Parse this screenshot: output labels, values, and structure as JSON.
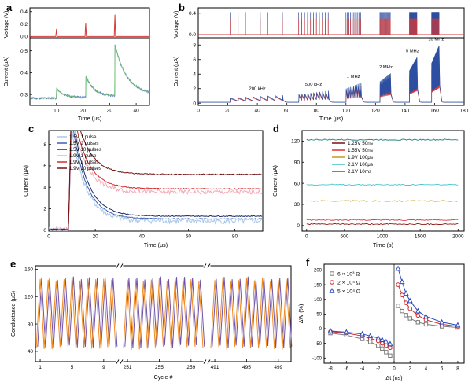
{
  "panels": {
    "a": {
      "letter": "a"
    },
    "b": {
      "letter": "b"
    },
    "c": {
      "letter": "c"
    },
    "d": {
      "letter": "d"
    },
    "e": {
      "letter": "e"
    },
    "f": {
      "letter": "f"
    }
  },
  "chart_data": [
    {
      "id": "a",
      "type": "line",
      "x": {
        "min": 0,
        "max": 45,
        "ticks": [
          10,
          20,
          30,
          40
        ],
        "tick_labels": [
          "10",
          "20",
          "30",
          "40"
        ],
        "label": "Time (μs)"
      },
      "voltage": {
        "label": "Voltage (V)",
        "min": -0.02,
        "max": 0.46,
        "ticks": [
          0,
          0.2,
          0.4
        ],
        "tick_labels": [
          "0.0",
          "0.2",
          "0.4"
        ],
        "color": "#d43c3c",
        "pulses": [
          {
            "t": 10,
            "v": 0.12
          },
          {
            "t": 21,
            "v": 0.22
          },
          {
            "t": 32,
            "v": 0.35
          }
        ]
      },
      "current": {
        "label": "Current (μA)",
        "min": 0.25,
        "max": 0.56,
        "ticks": [
          0.3,
          0.4,
          0.5
        ],
        "tick_labels": [
          "0.3",
          "0.4",
          "0.5"
        ],
        "baseline": 0.283,
        "data_color": "#5577c0",
        "fit_color": "#6fbf73",
        "responses": [
          {
            "t": 10,
            "amp": 0.04,
            "tau": 2.5,
            "offset": 0.004
          },
          {
            "t": 21,
            "amp": 0.095,
            "tau": 3,
            "offset": 0.005
          },
          {
            "t": 32,
            "amp": 0.23,
            "tau": 4.5,
            "offset": 0.006
          }
        ]
      }
    },
    {
      "id": "b",
      "type": "line",
      "x": {
        "min": 0,
        "max": 180,
        "ticks": [
          0,
          20,
          40,
          60,
          80,
          100,
          120,
          140,
          160,
          180
        ],
        "tick_labels": [
          "0",
          "20",
          "40",
          "60",
          "80",
          "100",
          "120",
          "140",
          "160",
          "180"
        ],
        "label": "Time (μs)"
      },
      "voltage": {
        "label": "Voltage (V)",
        "min": -0.06,
        "max": 0.5,
        "ticks": [
          0,
          0.4
        ],
        "tick_labels": [
          "0.0",
          "0.4"
        ],
        "blue_amp": 0.42,
        "red_amp": 0.3
      },
      "current": {
        "label": "Current (μA)",
        "min": -0.3,
        "max": 9,
        "ticks": [
          0,
          2,
          4,
          6,
          8
        ],
        "tick_labels": [
          "0",
          "2",
          "4",
          "6",
          "8"
        ],
        "baseline": 0.12
      },
      "colors": {
        "blue": "#2d4fa1",
        "red": "#d33a3a"
      },
      "groups": [
        {
          "label": "200 kHz",
          "t0": 22,
          "period": 5,
          "n": 8,
          "amp0": 0.7,
          "amp1": 1.1,
          "lx": 40,
          "ly": 1.8
        },
        {
          "label": "500 kHz",
          "t0": 68,
          "period": 2,
          "n": 11,
          "amp0": 1.2,
          "amp1": 1.7,
          "lx": 78,
          "ly": 2.4
        },
        {
          "label": "1 MHz",
          "t0": 100,
          "period": 1,
          "n": 11,
          "amp0": 2.0,
          "amp1": 2.8,
          "lx": 105,
          "ly": 3.5
        },
        {
          "label": "2 MHz",
          "t0": 123,
          "period": 0.5,
          "n": 15,
          "amp0": 3.0,
          "amp1": 4.1,
          "lx": 127,
          "ly": 4.8
        },
        {
          "label": "5 MHz",
          "t0": 143,
          "period": 0.2,
          "n": 26,
          "amp0": 4.5,
          "amp1": 6.3,
          "lx": 145,
          "ly": 7.0
        },
        {
          "label": "10 MHz",
          "t0": 158,
          "period": 0.1,
          "n": 51,
          "amp0": 5.5,
          "amp1": 7.9,
          "lx": 161,
          "ly": 8.6
        }
      ]
    },
    {
      "id": "c",
      "type": "line",
      "x": {
        "min": 0,
        "max": 92,
        "ticks": [
          0,
          20,
          40,
          60,
          80
        ],
        "tick_labels": [
          "0",
          "20",
          "40",
          "60",
          "80"
        ],
        "label": "Time (μs)"
      },
      "y": {
        "min": -0.1,
        "max": 9.3,
        "ticks": [
          0,
          2,
          4,
          6,
          8
        ],
        "tick_labels": [
          "0",
          "2",
          "4",
          "6",
          "8"
        ],
        "label": "Current (μA)"
      },
      "rise_t": 8.5,
      "peak_t": 9.8,
      "decay_tau": 6,
      "series": [
        {
          "label": "1.5V 1 pulse",
          "color": "#a9c9e9",
          "peak": 9.6,
          "plateau": 0.85,
          "noise": 0.5
        },
        {
          "label": "1.5V 2 pulses",
          "color": "#3c5fb4",
          "peak": 10.5,
          "plateau": 1.05,
          "noise": 0.08
        },
        {
          "label": "1.5V 10 pulses",
          "color": "#1a2a66",
          "peak": 11.5,
          "plateau": 1.3,
          "noise": 0.08
        },
        {
          "label": "1.9V 1 pulse",
          "color": "#f3aab8",
          "peak": 11,
          "plateau": 3.55,
          "noise": 0.4
        },
        {
          "label": "1.9V 2 pulses",
          "color": "#d02f2f",
          "peak": 12,
          "plateau": 3.85,
          "noise": 0.1
        },
        {
          "label": "1.9V 10 pulses",
          "color": "#731212",
          "peak": 13,
          "plateau": 5.2,
          "noise": 0.1
        }
      ]
    },
    {
      "id": "d",
      "type": "line",
      "x": {
        "min": 0,
        "max": 2000,
        "ticks": [
          0,
          500,
          1000,
          1500,
          2000
        ],
        "tick_labels": [
          "0",
          "500",
          "1000",
          "1500",
          "2000"
        ],
        "label": "Time (s)"
      },
      "y": {
        "min": -8,
        "max": 135,
        "ticks": [
          0,
          30,
          60,
          90,
          120
        ],
        "tick_labels": [
          "0",
          "30",
          "60",
          "90",
          "120"
        ],
        "label": "Current (μA)"
      },
      "series": [
        {
          "label": "1.25V 50ns",
          "color": "#8b1d1d",
          "level": 2
        },
        {
          "label": "1.55V 50ns",
          "color": "#e23b3b",
          "level": 8
        },
        {
          "label": "1.9V 100μs",
          "color": "#c9a227",
          "level": 35
        },
        {
          "label": "2.1V 100μs",
          "color": "#49c6cb",
          "level": 58
        },
        {
          "label": "2.1V 10ms",
          "color": "#1d7d84",
          "level": 122
        }
      ]
    },
    {
      "id": "e",
      "type": "line",
      "y": {
        "min": 25,
        "max": 165,
        "ticks": [
          40,
          80,
          120,
          160
        ],
        "tick_labels": [
          "40",
          "80",
          "120",
          "160"
        ],
        "label": "Conductance (μS)"
      },
      "x_label": "Cycle #",
      "gmin": 45,
      "gmax": 145,
      "colors": {
        "orange": "#f08c1e",
        "purple": "#6f52a8"
      },
      "segments": [
        {
          "start": 1,
          "end": 10,
          "ticks": [
            1,
            5,
            9
          ],
          "tick_labels": [
            "1",
            "5",
            "9"
          ]
        },
        {
          "start": 251,
          "end": 260,
          "ticks": [
            251,
            255,
            259
          ],
          "tick_labels": [
            "251",
            "255",
            "259"
          ]
        },
        {
          "start": 491,
          "end": 500,
          "ticks": [
            491,
            495,
            499
          ],
          "tick_labels": [
            "491",
            "495",
            "499"
          ]
        }
      ]
    },
    {
      "id": "f",
      "type": "scatter",
      "x": {
        "min": -8.8,
        "max": 8.8,
        "ticks": [
          -8,
          -6,
          -4,
          -2,
          0,
          2,
          4,
          6,
          8
        ],
        "tick_labels": [
          "-8",
          "-6",
          "-4",
          "-2",
          "0",
          "2",
          "4",
          "6",
          "8"
        ],
        "label": "Δt (ns)"
      },
      "y": {
        "min": -118,
        "max": 220,
        "ticks": [
          -100,
          -50,
          0,
          50,
          100,
          150,
          200
        ],
        "tick_labels": [
          "-100",
          "-50",
          "0",
          "50",
          "100",
          "150",
          "200"
        ],
        "label": "ΔW (%)"
      },
      "series": [
        {
          "label": "6 × 10³ Ω",
          "color": "#7a7a7a",
          "marker": "square",
          "points": [
            [
              -8,
              -15
            ],
            [
              -6,
              -22
            ],
            [
              -4,
              -35
            ],
            [
              -3,
              -45
            ],
            [
              -2,
              -58
            ],
            [
              -1.5,
              -68
            ],
            [
              -1,
              -80
            ],
            [
              -0.5,
              -92
            ],
            [
              0.5,
              78
            ],
            [
              1,
              60
            ],
            [
              1.5,
              46
            ],
            [
              2,
              35
            ],
            [
              3,
              22
            ],
            [
              4,
              15
            ],
            [
              6,
              8
            ],
            [
              8,
              4
            ]
          ]
        },
        {
          "label": "2 × 10⁴ Ω",
          "color": "#cc2a2a",
          "marker": "circle",
          "points": [
            [
              -8,
              -10
            ],
            [
              -6,
              -15
            ],
            [
              -4,
              -25
            ],
            [
              -3,
              -33
            ],
            [
              -2,
              -42
            ],
            [
              -1.5,
              -50
            ],
            [
              -1,
              -58
            ],
            [
              -0.5,
              -65
            ],
            [
              0.5,
              150
            ],
            [
              1,
              115
            ],
            [
              1.5,
              88
            ],
            [
              2,
              68
            ],
            [
              3,
              45
            ],
            [
              4,
              30
            ],
            [
              6,
              15
            ],
            [
              8,
              8
            ]
          ]
        },
        {
          "label": "5 × 10⁴ Ω",
          "color": "#2a48c0",
          "marker": "triangle",
          "points": [
            [
              -8,
              -8
            ],
            [
              -6,
              -12
            ],
            [
              -4,
              -18
            ],
            [
              -3,
              -25
            ],
            [
              -2,
              -32
            ],
            [
              -1.5,
              -38
            ],
            [
              -1,
              -45
            ],
            [
              -0.5,
              -52
            ],
            [
              0.5,
              205
            ],
            [
              1,
              160
            ],
            [
              1.5,
              120
            ],
            [
              2,
              95
            ],
            [
              3,
              60
            ],
            [
              4,
              42
            ],
            [
              6,
              22
            ],
            [
              8,
              12
            ]
          ]
        }
      ]
    }
  ]
}
